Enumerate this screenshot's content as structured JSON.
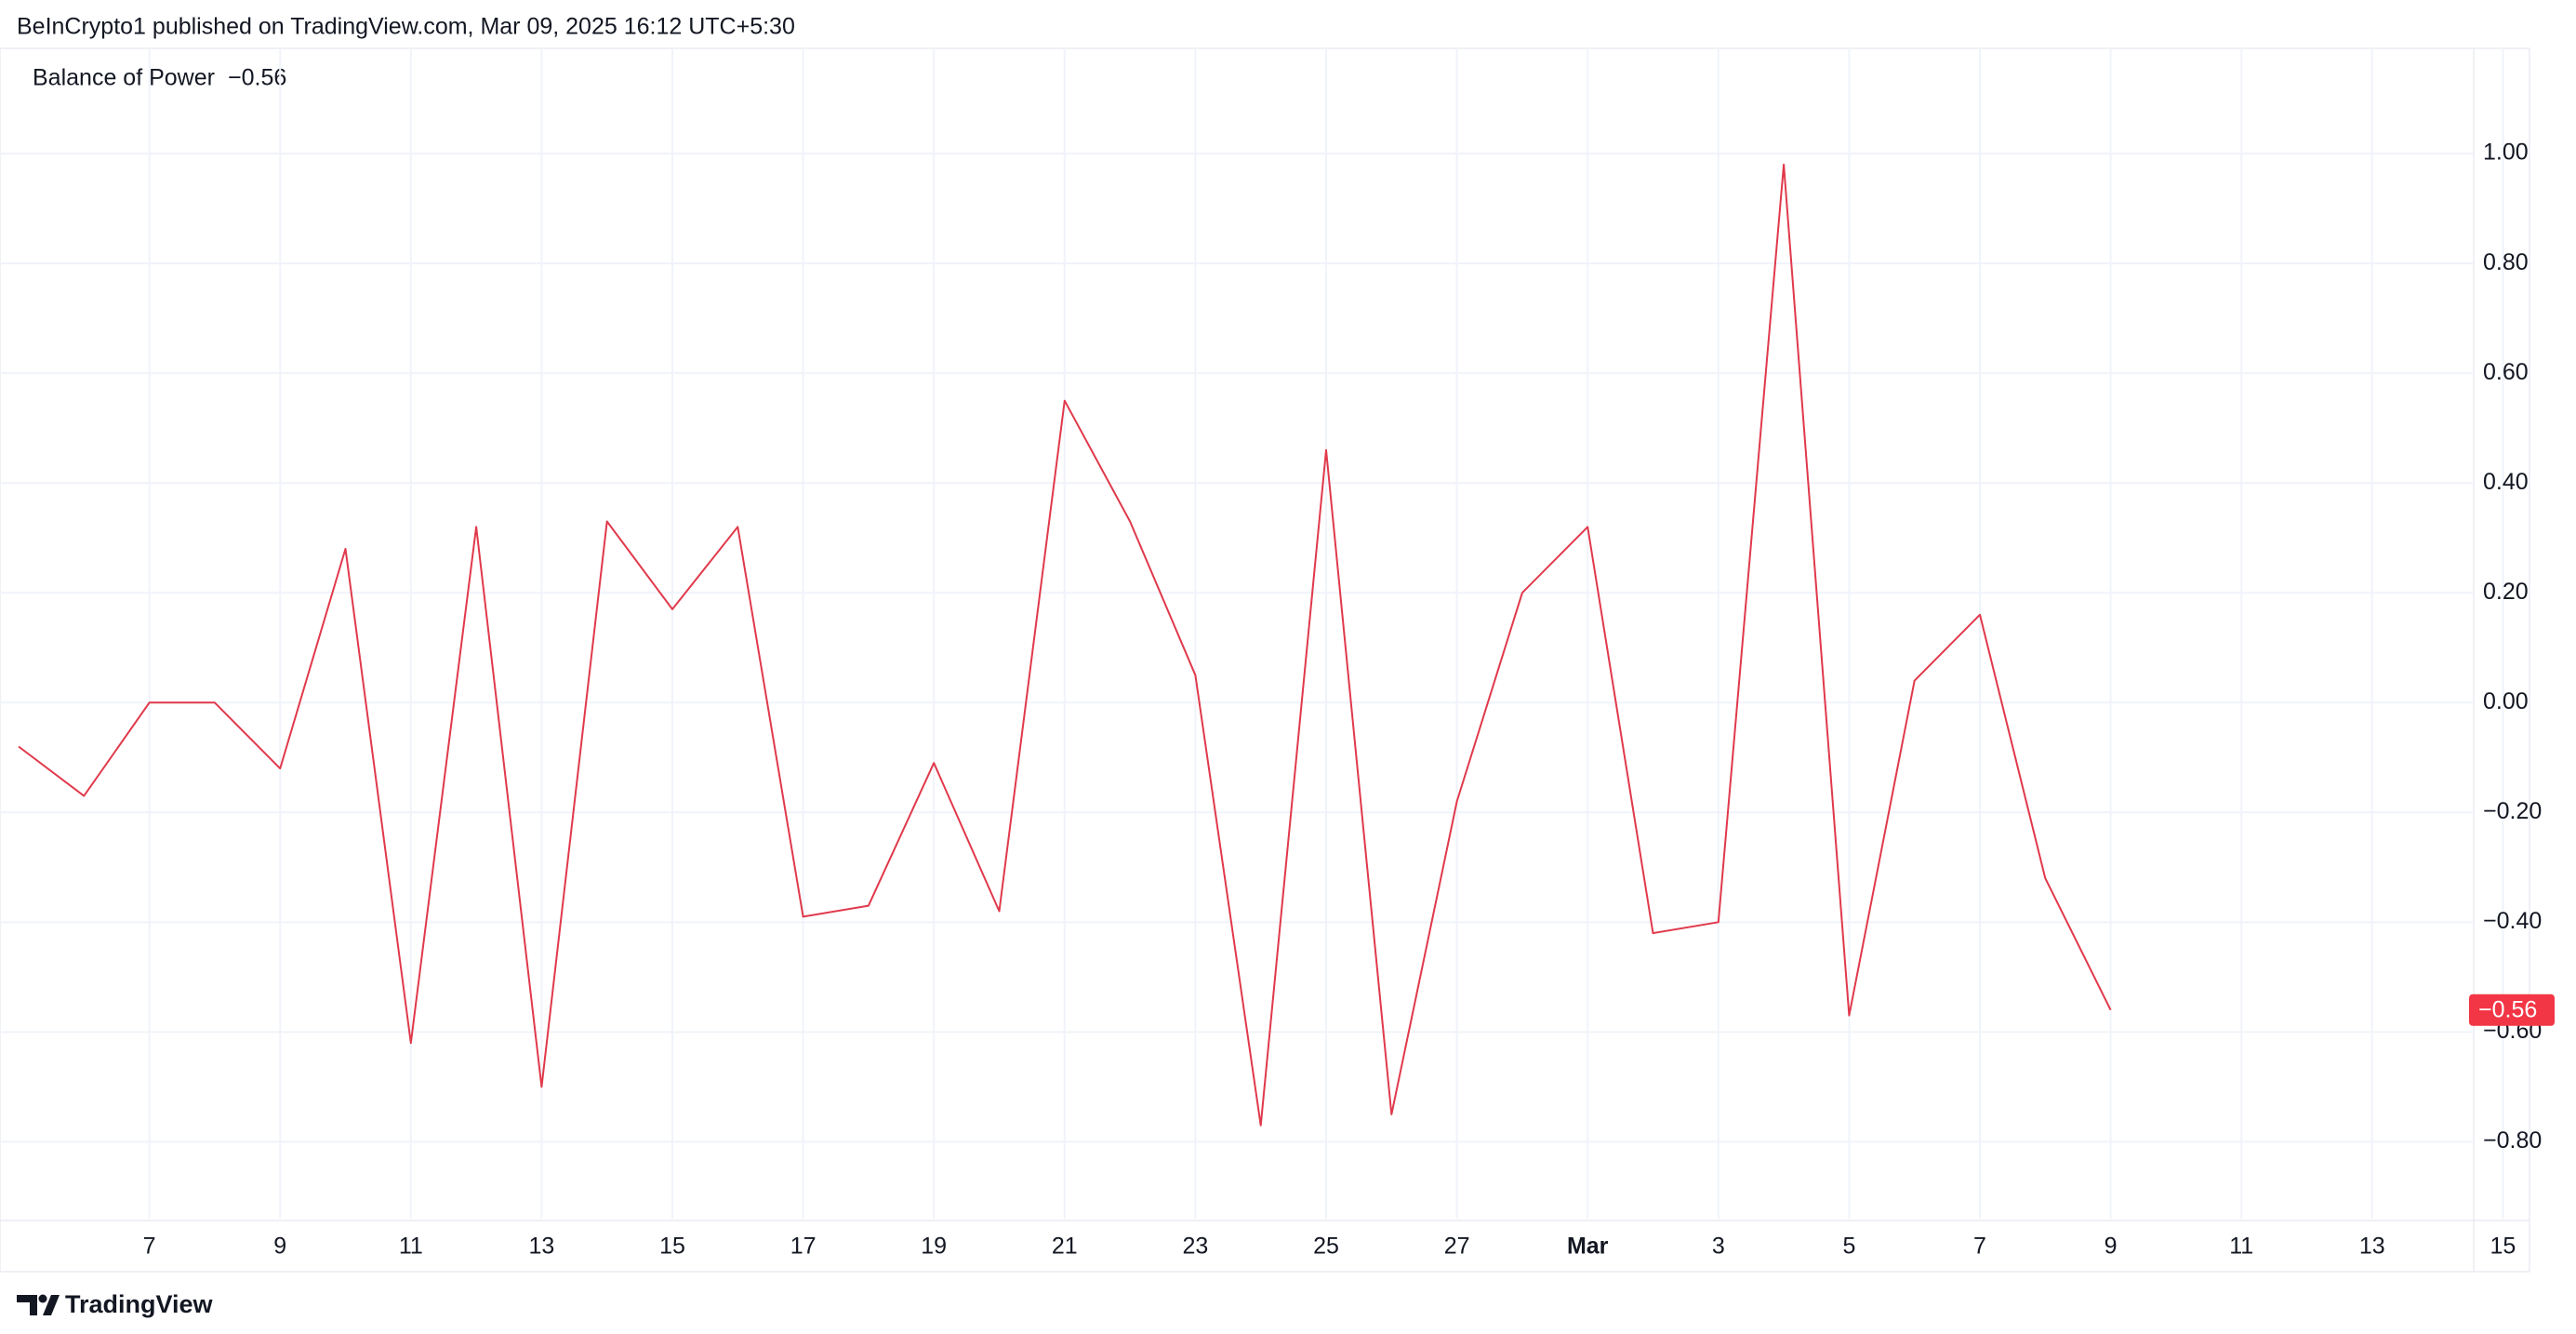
{
  "header": {
    "text": "BeInCrypto1 published on TradingView.com, Mar 09, 2025 16:12 UTC+5:30"
  },
  "footer": {
    "brand": "TradingView"
  },
  "chart_data": {
    "type": "line",
    "title": "Balance of Power",
    "indicator": {
      "value": -0.56,
      "label": "−0.56"
    },
    "categories": [
      null,
      null,
      "7",
      null,
      "9",
      null,
      "11",
      null,
      "13",
      null,
      "15",
      null,
      "17",
      null,
      "19",
      null,
      "21",
      null,
      "23",
      null,
      "25",
      null,
      "27",
      null,
      "Mar",
      null,
      "3",
      null,
      "5",
      null,
      "7",
      null,
      "9",
      null,
      "11",
      null,
      "13",
      null,
      "15",
      null
    ],
    "series": [
      {
        "name": "Balance of Power",
        "color": "#e0394b",
        "values": [
          -0.08,
          -0.17,
          0.0,
          0.0,
          -0.12,
          0.28,
          -0.62,
          0.32,
          -0.7,
          0.33,
          0.17,
          0.32,
          -0.39,
          -0.37,
          -0.11,
          -0.38,
          0.55,
          0.33,
          0.05,
          -0.77,
          0.46,
          -0.75,
          -0.18,
          0.2,
          0.32,
          -0.42,
          -0.4,
          0.98,
          -0.57,
          0.04,
          0.16,
          -0.32,
          -0.56,
          null,
          null,
          null,
          null,
          null,
          null,
          null
        ]
      }
    ],
    "ylim": [
      -0.94,
      1.19
    ],
    "yticks": [
      {
        "value": -0.8,
        "label": "−0.80"
      },
      {
        "value": -0.6,
        "label": "−0.60"
      },
      {
        "value": -0.4,
        "label": "−0.40"
      },
      {
        "value": -0.2,
        "label": "−0.20"
      },
      {
        "value": 0,
        "label": "0.00"
      },
      {
        "value": 0.2,
        "label": "0.20"
      },
      {
        "value": 0.4,
        "label": "0.40"
      },
      {
        "value": 0.6,
        "label": "0.60"
      },
      {
        "value": 0.8,
        "label": "0.80"
      },
      {
        "value": 1,
        "label": "1.00"
      }
    ],
    "grid": true,
    "tag_color": "#f23645"
  }
}
